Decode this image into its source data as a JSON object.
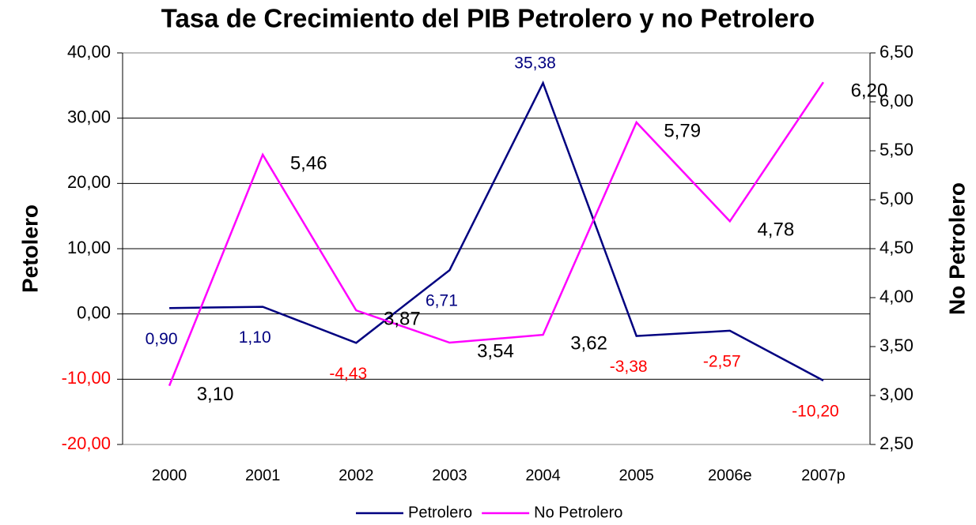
{
  "chart_data": {
    "type": "line",
    "title": "Tasa de Crecimiento del PIB Petrolero y no Petrolero",
    "y_label": "Petolero",
    "y2_label": "No Petrolero",
    "categories": [
      "2000",
      "2001",
      "2002",
      "2003",
      "2004",
      "2005",
      "2006e",
      "2007p"
    ],
    "series": [
      {
        "name": "Petrolero",
        "color": "#000080",
        "values": [
          0.9,
          1.1,
          -4.43,
          6.71,
          35.38,
          -3.38,
          -2.57,
          -10.2
        ],
        "value_labels": [
          "0,90",
          "1,10",
          "-4,43",
          "6,71",
          "35,38",
          "-3,38",
          "-2,57",
          "-10,20"
        ]
      },
      {
        "name": "No Petrolero",
        "color": "#ff00ff",
        "axis": "y2",
        "values": [
          3.1,
          5.46,
          3.87,
          3.54,
          3.62,
          5.79,
          4.78,
          6.2
        ],
        "value_labels": [
          "3,10",
          "5,46",
          "3,87",
          "3,54",
          "3,62",
          "5,79",
          "4,78",
          "6,20"
        ]
      }
    ],
    "ylim": [
      -20,
      40
    ],
    "yticks": [
      {
        "value": -20,
        "label": "-20,00"
      },
      {
        "value": -10,
        "label": "-10,00"
      },
      {
        "value": 0,
        "label": "0,00"
      },
      {
        "value": 10,
        "label": "10,00"
      },
      {
        "value": 20,
        "label": "20,00"
      },
      {
        "value": 30,
        "label": "30,00"
      },
      {
        "value": 40,
        "label": "40,00"
      }
    ],
    "y2lim": [
      2.5,
      6.5
    ],
    "y2ticks": [
      {
        "value": 2.5,
        "label": "2,50"
      },
      {
        "value": 3.0,
        "label": "3,00"
      },
      {
        "value": 3.5,
        "label": "3,50"
      },
      {
        "value": 4.0,
        "label": "4,00"
      },
      {
        "value": 4.5,
        "label": "4,50"
      },
      {
        "value": 5.0,
        "label": "5,00"
      },
      {
        "value": 5.5,
        "label": "5,50"
      },
      {
        "value": 6.0,
        "label": "6,00"
      },
      {
        "value": 6.5,
        "label": "6,50"
      }
    ],
    "grid": true,
    "legend": "bottom"
  }
}
